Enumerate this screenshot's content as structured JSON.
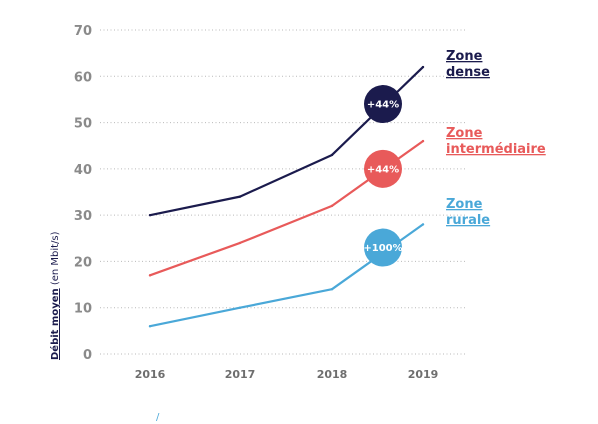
{
  "chart_data": {
    "type": "line",
    "x": [
      "2016",
      "2017",
      "2018",
      "2019"
    ],
    "y_ticks": [
      "0",
      "10",
      "20",
      "30",
      "40",
      "50",
      "60",
      "70"
    ],
    "ylim": [
      0,
      70
    ],
    "ylabel_main": "Débit moyen",
    "ylabel_unit": " (en Mbit/s)",
    "grid": true,
    "series": [
      {
        "name": "Zone dense",
        "label_lines": [
          "Zone",
          "dense"
        ],
        "color": "#1b1b4d",
        "values": [
          30,
          34,
          43,
          62
        ],
        "badge": "+44%",
        "badge_y": 54
      },
      {
        "name": "Zone intermédiaire",
        "label_lines": [
          "Zone",
          "intermédiaire"
        ],
        "color": "#e85a5a",
        "values": [
          17,
          24,
          32,
          46
        ],
        "badge": "+44%",
        "badge_y": 40
      },
      {
        "name": "Zone rurale",
        "label_lines": [
          "Zone",
          "rurale"
        ],
        "color": "#4aa8d8",
        "values": [
          6,
          10,
          14,
          28
        ],
        "badge": "+100%",
        "badge_y": 23
      }
    ]
  },
  "footer_mark": "/"
}
